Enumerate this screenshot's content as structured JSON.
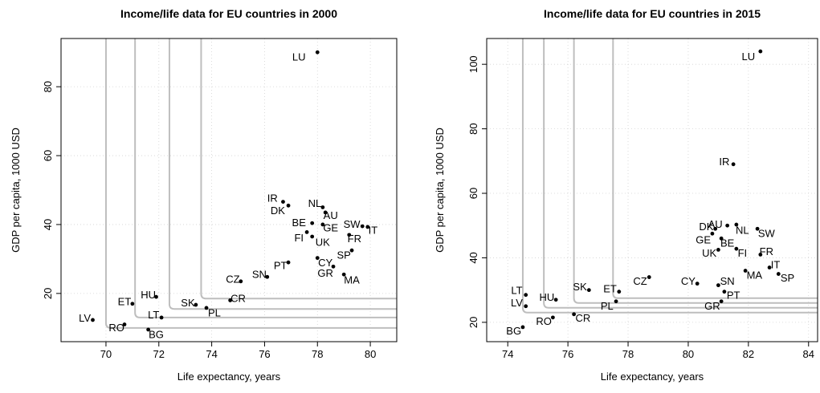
{
  "chart_data": [
    {
      "type": "scatter",
      "title": "Income/life data for EU countries in 2000",
      "xlabel": "Life expectancy, years",
      "ylabel": "GDP per capita, 1000 USD",
      "xlim": [
        68.3,
        81.0
      ],
      "ylim": [
        6.0,
        94.0
      ],
      "xticks": [
        70,
        72,
        74,
        76,
        78,
        80
      ],
      "yticks": [
        20,
        40,
        60,
        80
      ],
      "grid": true,
      "points": [
        {
          "label": "LU",
          "x": 78.0,
          "y": 90.0,
          "lx": 77.3,
          "ly": 88.5
        },
        {
          "label": "IR",
          "x": 76.7,
          "y": 46.6,
          "lx": 76.3,
          "ly": 47.6
        },
        {
          "label": "DK",
          "x": 76.9,
          "y": 45.5,
          "lx": 76.5,
          "ly": 44.0
        },
        {
          "label": "NL",
          "x": 78.2,
          "y": 45.0,
          "lx": 77.9,
          "ly": 46.0
        },
        {
          "label": "AU",
          "x": 78.3,
          "y": 43.5,
          "lx": 78.5,
          "ly": 42.5
        },
        {
          "label": "BE",
          "x": 77.8,
          "y": 40.4,
          "lx": 77.3,
          "ly": 40.5
        },
        {
          "label": "GE",
          "x": 78.2,
          "y": 40.0,
          "lx": 78.5,
          "ly": 39.0
        },
        {
          "label": "SW",
          "x": 79.7,
          "y": 39.5,
          "lx": 79.3,
          "ly": 40.0
        },
        {
          "label": "IT",
          "x": 79.9,
          "y": 39.3,
          "lx": 80.1,
          "ly": 38.2
        },
        {
          "label": "FI",
          "x": 77.6,
          "y": 37.8,
          "lx": 77.3,
          "ly": 36.0
        },
        {
          "label": "FR",
          "x": 79.2,
          "y": 37.0,
          "lx": 79.4,
          "ly": 35.8
        },
        {
          "label": "UK",
          "x": 77.8,
          "y": 36.5,
          "lx": 78.2,
          "ly": 34.8
        },
        {
          "label": "SP",
          "x": 79.3,
          "y": 32.5,
          "lx": 79.0,
          "ly": 31.0
        },
        {
          "label": "CY",
          "x": 78.0,
          "y": 30.3,
          "lx": 78.3,
          "ly": 28.8
        },
        {
          "label": "PT",
          "x": 76.9,
          "y": 29.0,
          "lx": 76.6,
          "ly": 28.0
        },
        {
          "label": "GR",
          "x": 78.6,
          "y": 27.8,
          "lx": 78.3,
          "ly": 25.8
        },
        {
          "label": "MA",
          "x": 79.0,
          "y": 25.5,
          "lx": 79.3,
          "ly": 23.8
        },
        {
          "label": "SN",
          "x": 76.1,
          "y": 24.8,
          "lx": 75.8,
          "ly": 25.4
        },
        {
          "label": "CZ",
          "x": 75.1,
          "y": 23.5,
          "lx": 74.8,
          "ly": 24.0
        },
        {
          "label": "CR",
          "x": 74.7,
          "y": 18.0,
          "lx": 75.0,
          "ly": 18.5
        },
        {
          "label": "ET",
          "x": 71.0,
          "y": 17.0,
          "lx": 70.7,
          "ly": 17.5
        },
        {
          "label": "HU",
          "x": 71.9,
          "y": 19.0,
          "lx": 71.6,
          "ly": 19.5
        },
        {
          "label": "SK",
          "x": 73.4,
          "y": 16.7,
          "lx": 73.1,
          "ly": 17.2
        },
        {
          "label": "PL",
          "x": 73.8,
          "y": 15.8,
          "lx": 74.1,
          "ly": 14.3
        },
        {
          "label": "LT",
          "x": 72.1,
          "y": 13.0,
          "lx": 71.8,
          "ly": 13.7
        },
        {
          "label": "LV",
          "x": 69.5,
          "y": 12.3,
          "lx": 69.2,
          "ly": 12.8
        },
        {
          "label": "RO",
          "x": 70.7,
          "y": 11.0,
          "lx": 70.4,
          "ly": 9.9
        },
        {
          "label": "BG",
          "x": 71.6,
          "y": 9.5,
          "lx": 71.9,
          "ly": 8.0
        }
      ],
      "contours": [
        {
          "x": 70.0,
          "y": 10.0
        },
        {
          "x": 71.1,
          "y": 13.0
        },
        {
          "x": 72.4,
          "y": 15.5
        },
        {
          "x": 73.6,
          "y": 18.5
        }
      ]
    },
    {
      "type": "scatter",
      "title": "Income/life data for EU countries in 2015",
      "xlabel": "Life expectancy, years",
      "ylabel": "GDP per capita, 1000 USD",
      "xlim": [
        73.3,
        84.3
      ],
      "ylim": [
        14.0,
        108.0
      ],
      "xticks": [
        74,
        76,
        78,
        80,
        82,
        84
      ],
      "yticks": [
        20,
        40,
        60,
        80,
        100
      ],
      "grid": true,
      "points": [
        {
          "label": "LU",
          "x": 82.4,
          "y": 104.0,
          "lx": 82.0,
          "ly": 102.3
        },
        {
          "label": "IR",
          "x": 81.5,
          "y": 69.0,
          "lx": 81.2,
          "ly": 69.7
        },
        {
          "label": "AU",
          "x": 81.3,
          "y": 50.0,
          "lx": 80.9,
          "ly": 50.3
        },
        {
          "label": "DK",
          "x": 80.9,
          "y": 49.0,
          "lx": 80.6,
          "ly": 49.5
        },
        {
          "label": "NL",
          "x": 81.6,
          "y": 50.3,
          "lx": 81.8,
          "ly": 48.5
        },
        {
          "label": "SW",
          "x": 82.3,
          "y": 49.0,
          "lx": 82.6,
          "ly": 47.5
        },
        {
          "label": "GE",
          "x": 80.8,
          "y": 47.5,
          "lx": 80.5,
          "ly": 45.5
        },
        {
          "label": "BE",
          "x": 81.1,
          "y": 46.0,
          "lx": 81.3,
          "ly": 44.5
        },
        {
          "label": "UK",
          "x": 81.0,
          "y": 42.5,
          "lx": 80.7,
          "ly": 41.3
        },
        {
          "label": "FI",
          "x": 81.6,
          "y": 42.8,
          "lx": 81.8,
          "ly": 41.3
        },
        {
          "label": "FR",
          "x": 82.4,
          "y": 41.0,
          "lx": 82.6,
          "ly": 41.9
        },
        {
          "label": "IT",
          "x": 82.7,
          "y": 37.0,
          "lx": 82.9,
          "ly": 37.7
        },
        {
          "label": "MA",
          "x": 81.9,
          "y": 36.0,
          "lx": 82.2,
          "ly": 34.5
        },
        {
          "label": "SP",
          "x": 83.0,
          "y": 35.0,
          "lx": 83.3,
          "ly": 33.7
        },
        {
          "label": "CZ",
          "x": 78.7,
          "y": 34.0,
          "lx": 78.4,
          "ly": 32.7
        },
        {
          "label": "CY",
          "x": 80.3,
          "y": 32.0,
          "lx": 80.0,
          "ly": 32.7
        },
        {
          "label": "SN",
          "x": 81.0,
          "y": 31.5,
          "lx": 81.3,
          "ly": 32.7
        },
        {
          "label": "PT",
          "x": 81.2,
          "y": 29.5,
          "lx": 81.5,
          "ly": 28.3
        },
        {
          "label": "GR",
          "x": 81.1,
          "y": 26.5,
          "lx": 80.8,
          "ly": 25.0
        },
        {
          "label": "SK",
          "x": 76.7,
          "y": 30.0,
          "lx": 76.4,
          "ly": 30.9
        },
        {
          "label": "ET",
          "x": 77.7,
          "y": 29.5,
          "lx": 77.4,
          "ly": 30.3
        },
        {
          "label": "PL",
          "x": 77.6,
          "y": 26.5,
          "lx": 77.3,
          "ly": 25.0
        },
        {
          "label": "LT",
          "x": 74.6,
          "y": 28.5,
          "lx": 74.3,
          "ly": 29.8
        },
        {
          "label": "HU",
          "x": 75.6,
          "y": 27.0,
          "lx": 75.3,
          "ly": 27.7
        },
        {
          "label": "LV",
          "x": 74.6,
          "y": 25.0,
          "lx": 74.3,
          "ly": 25.9
        },
        {
          "label": "CR",
          "x": 76.2,
          "y": 22.5,
          "lx": 76.5,
          "ly": 21.2
        },
        {
          "label": "RO",
          "x": 75.5,
          "y": 21.5,
          "lx": 75.2,
          "ly": 20.2
        },
        {
          "label": "BG",
          "x": 74.5,
          "y": 18.5,
          "lx": 74.2,
          "ly": 17.2
        }
      ],
      "contours": [
        {
          "x": 74.5,
          "y": 23.0
        },
        {
          "x": 75.2,
          "y": 24.5
        },
        {
          "x": 76.2,
          "y": 26.0
        },
        {
          "x": 77.5,
          "y": 27.5
        }
      ]
    }
  ]
}
